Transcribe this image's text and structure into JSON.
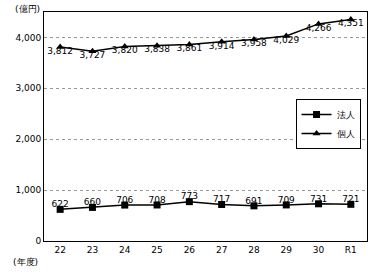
{
  "chart_data": {
    "type": "line",
    "x_label": "(年度)",
    "y_label": "(億円)",
    "categories": [
      "22",
      "23",
      "24",
      "25",
      "26",
      "27",
      "28",
      "29",
      "30",
      "R1"
    ],
    "series": [
      {
        "name": "法人",
        "color": "#000000",
        "marker": "square",
        "values": [
          622,
          660,
          706,
          708,
          773,
          717,
          691,
          709,
          731,
          721
        ]
      },
      {
        "name": "個人",
        "color": "#000000",
        "marker": "triangle-up",
        "values": [
          3812,
          3727,
          3820,
          3838,
          3861,
          3914,
          3958,
          4029,
          4266,
          4351
        ],
        "value_labels": [
          "3,812",
          "3,727",
          "3,820",
          "3,838",
          "3,861",
          "3,914",
          "3,958",
          "4,029",
          "4,266",
          "4,351"
        ]
      }
    ],
    "ylim": [
      0,
      4500
    ],
    "yticks": [
      0,
      {
        "value": 1000,
        "label": "1,000"
      },
      {
        "value": 2000,
        "label": "2,000"
      },
      {
        "value": 3000,
        "label": "3,000"
      },
      {
        "value": 4000,
        "label": "4,000"
      }
    ],
    "grid": true,
    "legend": "right",
    "data_labels": true
  }
}
